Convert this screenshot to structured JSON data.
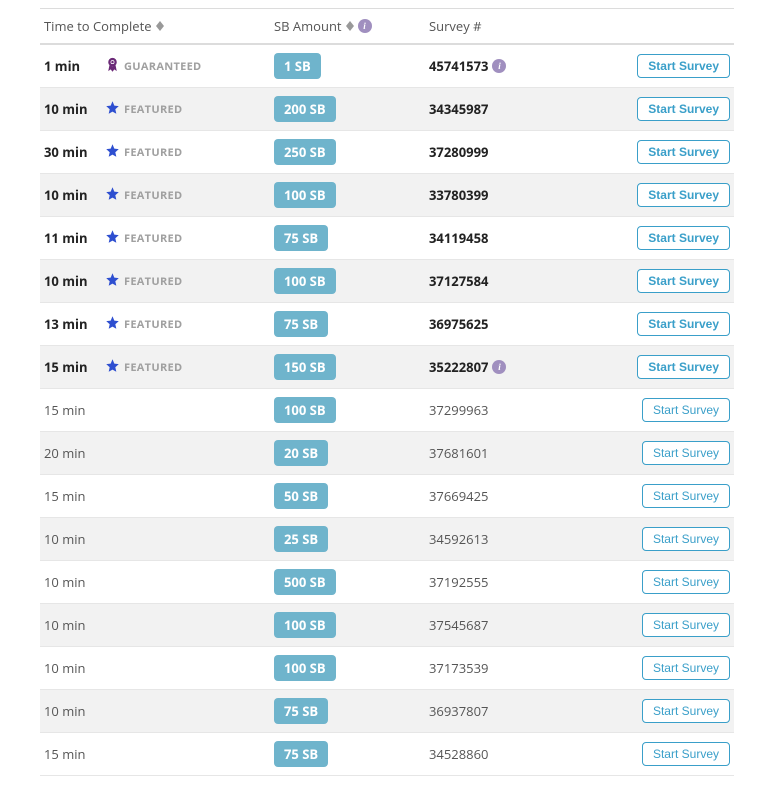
{
  "headers": {
    "time": "Time to Complete",
    "sb": "SB Amount",
    "survey": "Survey #"
  },
  "button_label": "Start Survey",
  "badges": {
    "guaranteed": "GUARANTEED",
    "featured": "FEATURED"
  },
  "colors": {
    "pill_bg": "#6fb4cc",
    "btn_border": "#3a9fc9",
    "star": "#2e4fd0",
    "ribbon": "#6b2a77",
    "info_bg": "#a08fbf",
    "row_alt": "#f2f2f2"
  },
  "rows": [
    {
      "time": "1 min",
      "badge": "guaranteed",
      "sb": "1 SB",
      "survey": "45741573",
      "info": true,
      "bold": true,
      "alt": false
    },
    {
      "time": "10 min",
      "badge": "featured",
      "sb": "200 SB",
      "survey": "34345987",
      "info": false,
      "bold": true,
      "alt": true
    },
    {
      "time": "30 min",
      "badge": "featured",
      "sb": "250 SB",
      "survey": "37280999",
      "info": false,
      "bold": true,
      "alt": false
    },
    {
      "time": "10 min",
      "badge": "featured",
      "sb": "100 SB",
      "survey": "33780399",
      "info": false,
      "bold": true,
      "alt": true
    },
    {
      "time": "11 min",
      "badge": "featured",
      "sb": "75 SB",
      "survey": "34119458",
      "info": false,
      "bold": true,
      "alt": false
    },
    {
      "time": "10 min",
      "badge": "featured",
      "sb": "100 SB",
      "survey": "37127584",
      "info": false,
      "bold": true,
      "alt": true
    },
    {
      "time": "13 min",
      "badge": "featured",
      "sb": "75 SB",
      "survey": "36975625",
      "info": false,
      "bold": true,
      "alt": false
    },
    {
      "time": "15 min",
      "badge": "featured",
      "sb": "150 SB",
      "survey": "35222807",
      "info": true,
      "bold": true,
      "alt": true
    },
    {
      "time": "15 min",
      "badge": null,
      "sb": "100 SB",
      "survey": "37299963",
      "info": false,
      "bold": false,
      "alt": false
    },
    {
      "time": "20 min",
      "badge": null,
      "sb": "20 SB",
      "survey": "37681601",
      "info": false,
      "bold": false,
      "alt": true
    },
    {
      "time": "15 min",
      "badge": null,
      "sb": "50 SB",
      "survey": "37669425",
      "info": false,
      "bold": false,
      "alt": false
    },
    {
      "time": "10 min",
      "badge": null,
      "sb": "25 SB",
      "survey": "34592613",
      "info": false,
      "bold": false,
      "alt": true
    },
    {
      "time": "10 min",
      "badge": null,
      "sb": "500 SB",
      "survey": "37192555",
      "info": false,
      "bold": false,
      "alt": false
    },
    {
      "time": "10 min",
      "badge": null,
      "sb": "100 SB",
      "survey": "37545687",
      "info": false,
      "bold": false,
      "alt": true
    },
    {
      "time": "10 min",
      "badge": null,
      "sb": "100 SB",
      "survey": "37173539",
      "info": false,
      "bold": false,
      "alt": false
    },
    {
      "time": "10 min",
      "badge": null,
      "sb": "75 SB",
      "survey": "36937807",
      "info": false,
      "bold": false,
      "alt": true
    },
    {
      "time": "15 min",
      "badge": null,
      "sb": "75 SB",
      "survey": "34528860",
      "info": false,
      "bold": false,
      "alt": false
    }
  ]
}
